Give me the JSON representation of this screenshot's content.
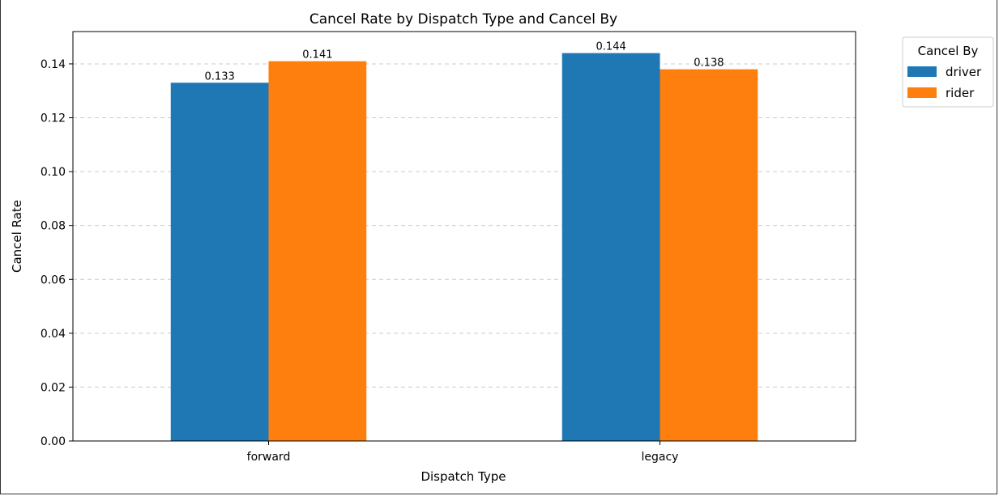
{
  "chart_data": {
    "type": "bar",
    "title": "Cancel Rate by Dispatch Type and Cancel By",
    "xlabel": "Dispatch Type",
    "ylabel": "Cancel Rate",
    "categories": [
      "forward",
      "legacy"
    ],
    "series": [
      {
        "name": "driver",
        "values": [
          0.133,
          0.144
        ],
        "color": "#1f77b4",
        "labels": [
          "0.133",
          "0.144"
        ]
      },
      {
        "name": "rider",
        "values": [
          0.141,
          0.138
        ],
        "color": "#ff7f0e",
        "labels": [
          "0.141",
          "0.138"
        ]
      }
    ],
    "ylim": [
      0,
      0.152
    ],
    "yticks": [
      0.0,
      0.02,
      0.04,
      0.06,
      0.08,
      0.1,
      0.12,
      0.14
    ],
    "ytick_labels": [
      "0.00",
      "0.02",
      "0.04",
      "0.06",
      "0.08",
      "0.10",
      "0.12",
      "0.14"
    ],
    "grid": "horizontal dashed",
    "legend": {
      "title": "Cancel By",
      "placement": "outside-top-right"
    }
  }
}
